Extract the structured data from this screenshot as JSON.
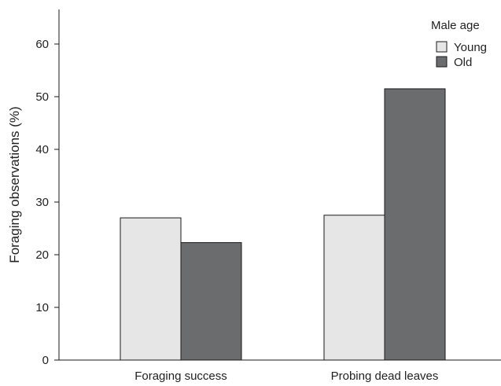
{
  "chart_data": {
    "type": "bar",
    "categories": [
      "Foraging success",
      "Probing dead leaves"
    ],
    "series": [
      {
        "name": "Young",
        "values": [
          27.0,
          27.5
        ],
        "color": "#e6e6e6"
      },
      {
        "name": "Old",
        "values": [
          22.3,
          51.5
        ],
        "color": "#6b6c6e"
      }
    ],
    "title": "",
    "xlabel": "",
    "ylabel": "Foraging observations (%)",
    "ylim": [
      0,
      65
    ],
    "yticks": [
      0,
      10,
      20,
      30,
      40,
      50,
      60
    ],
    "grid": false,
    "legend": {
      "title": "Male age",
      "position": "top-right"
    },
    "bar_edge_color": "#1a1a1a"
  }
}
